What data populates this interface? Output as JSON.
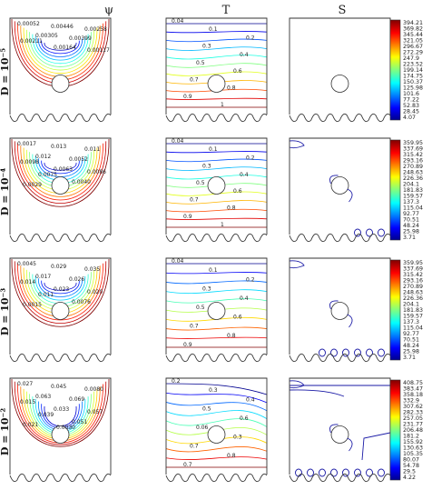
{
  "headers": {
    "psi": "ψ",
    "T": "T",
    "S": "S"
  },
  "rows": [
    {
      "label": "D = 10⁻⁵",
      "psi_labels": [
        "0.00052",
        "0.00446",
        "0.00258",
        "0.00305",
        "0.00399",
        "0.00211",
        "0.00164",
        "0.00117"
      ],
      "T_labels": [
        "0.04",
        "0.1",
        "0.2",
        "0.3",
        "0.4",
        "0.5",
        "0.6",
        "0.7",
        "0.8",
        "0.9",
        "1"
      ],
      "colorbar": [
        "394.21",
        "369.82",
        "345.44",
        "321.05",
        "296.67",
        "272.29",
        "247.9",
        "223.52",
        "199.14",
        "174.75",
        "150.37",
        "125.98",
        "101.6",
        "77.22",
        "52.83",
        "28.45",
        "4.07"
      ]
    },
    {
      "label": "D = 10⁻⁴",
      "psi_labels": [
        "0.0017",
        "0.013",
        "0.011",
        "0.012",
        "0.0052",
        "0.0098",
        "0.0063",
        "0.0086",
        "0.0075",
        "0.0040",
        "0.0029"
      ],
      "T_labels": [
        "0.04",
        "0.1",
        "0.2",
        "0.3",
        "0.4",
        "0.5",
        "0.6",
        "0.7",
        "0.8",
        "0.9",
        "1"
      ],
      "colorbar": [
        "359.95",
        "337.69",
        "315.42",
        "293.16",
        "270.89",
        "248.63",
        "226.36",
        "204.1",
        "181.83",
        "159.57",
        "137.3",
        "115.04",
        "92.77",
        "70.51",
        "48.24",
        "25.98",
        "3.71"
      ]
    },
    {
      "label": "D = 10⁻³",
      "psi_labels": [
        "0.0045",
        "0.029",
        "0.035",
        "0.017",
        "0.026",
        "0.014",
        "0.023",
        "0.020",
        "0.011",
        "0.0076",
        "0.0015"
      ],
      "T_labels": [
        "0.04",
        "0.1",
        "0.2",
        "0.3",
        "0.4",
        "0.5",
        "0.6",
        "0.7",
        "0.8",
        "0.9"
      ],
      "colorbar": [
        "359.95",
        "337.69",
        "315.42",
        "293.16",
        "270.89",
        "248.63",
        "226.36",
        "204.1",
        "181.83",
        "159.57",
        "137.3",
        "115.04",
        "92.77",
        "70.51",
        "48.24",
        "25.98",
        "3.71"
      ]
    },
    {
      "label": "D = 10⁻²",
      "psi_labels": [
        "0.027",
        "0.045",
        "0.0080",
        "0.063",
        "0.069",
        "0.015",
        "0.033",
        "0.057",
        "0.039",
        "0.051",
        "0.021",
        "0.0030"
      ],
      "T_labels": [
        "0.2",
        "0.3",
        "0.4",
        "0.5",
        "0.6",
        "0.06",
        "0.3",
        "0.7",
        "0.8",
        "0.7"
      ],
      "colorbar": [
        "408.75",
        "383.47",
        "358.18",
        "332.9",
        "307.62",
        "282.33",
        "257.05",
        "231.77",
        "206.48",
        "181.2",
        "155.92",
        "130.63",
        "105.35",
        "80.07",
        "54.78",
        "29.5",
        "4.22"
      ]
    }
  ],
  "colors": {
    "jet": [
      "#00008f",
      "#0000ff",
      "#0080ff",
      "#00ffff",
      "#80ff80",
      "#ffff00",
      "#ff8000",
      "#ff0000",
      "#800000"
    ],
    "entropy_line": "#1a1aa6",
    "frame": "#333333"
  }
}
